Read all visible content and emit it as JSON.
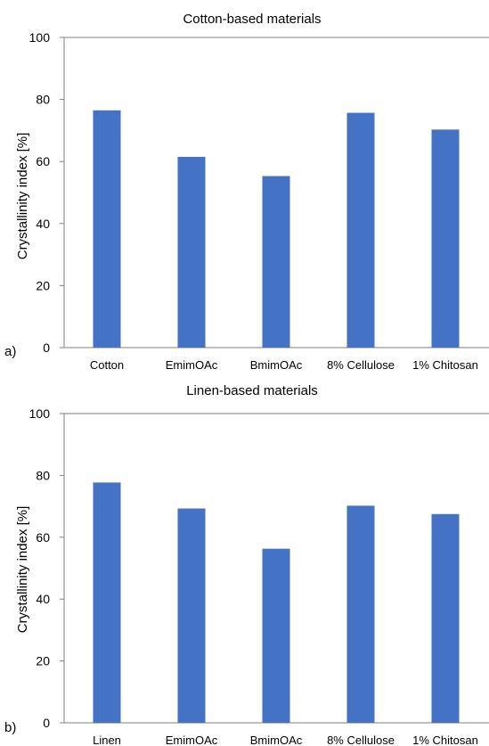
{
  "chart_data": [
    {
      "type": "bar",
      "panel_label": "a)",
      "title": "Cotton-based materials",
      "ylabel": "Crystallinity index [%]",
      "xlabel": "",
      "categories": [
        "Cotton",
        "EmimOAc",
        "BmimOAc",
        "8% Cellulose",
        "1% Chitosan"
      ],
      "values": [
        76.5,
        61.5,
        55.3,
        75.7,
        70.3
      ],
      "ylim": [
        0,
        100
      ],
      "yticks": [
        0,
        20,
        40,
        60,
        80,
        100
      ],
      "grid": false,
      "legend": "none",
      "bar_color": "#4472c4"
    },
    {
      "type": "bar",
      "panel_label": "b)",
      "title": "Linen-based materials",
      "ylabel": "Crystallinity index [%]",
      "xlabel": "",
      "categories": [
        "Linen",
        "EmimOAc",
        "BmimOAc",
        "8% Cellulose",
        "1% Chitosan"
      ],
      "values": [
        77.7,
        69.3,
        56.3,
        70.2,
        67.5
      ],
      "ylim": [
        0,
        100
      ],
      "yticks": [
        0,
        20,
        40,
        60,
        80,
        100
      ],
      "grid": false,
      "legend": "none",
      "bar_color": "#4472c4"
    }
  ]
}
